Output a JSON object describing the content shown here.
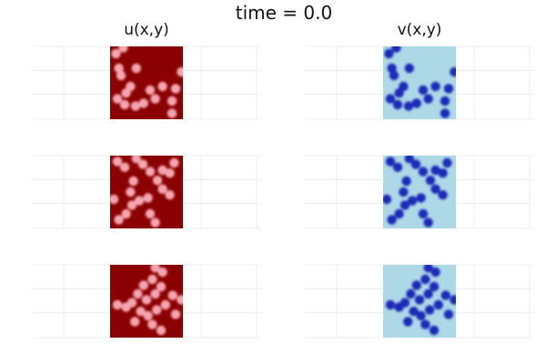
{
  "chart_data": {
    "type": "heatmap",
    "title": "time = 0.0",
    "columns": [
      "u(x,y)",
      "v(x,y)"
    ],
    "grid": true,
    "rows": 3,
    "colors": {
      "u_background": "#8b0000",
      "u_spot": "#f4a6b0",
      "v_background": "#add8e6",
      "v_spot": "#1a2ab8",
      "grid": "#ececec"
    },
    "panels": [
      {
        "column": "u(x,y)",
        "row": 1,
        "spots": [
          [
            0.08,
            0.1
          ],
          [
            0.18,
            0.02
          ],
          [
            0.12,
            0.3
          ],
          [
            0.15,
            0.4
          ],
          [
            0.28,
            0.55
          ],
          [
            0.22,
            0.64
          ],
          [
            0.1,
            0.72
          ],
          [
            0.2,
            0.8
          ],
          [
            0.35,
            0.82
          ],
          [
            0.46,
            0.78
          ],
          [
            0.36,
            0.3
          ],
          [
            0.55,
            0.6
          ],
          [
            0.62,
            0.72
          ],
          [
            0.72,
            0.55
          ],
          [
            0.9,
            0.58
          ],
          [
            0.85,
            0.75
          ],
          [
            0.85,
            0.92
          ],
          [
            0.98,
            0.35
          ]
        ]
      },
      {
        "column": "u(x,y)",
        "row": 2,
        "spots": [
          [
            0.1,
            0.08
          ],
          [
            0.2,
            0.16
          ],
          [
            0.36,
            0.04
          ],
          [
            0.45,
            0.12
          ],
          [
            0.55,
            0.22
          ],
          [
            0.72,
            0.2
          ],
          [
            0.82,
            0.24
          ],
          [
            0.88,
            0.1
          ],
          [
            0.65,
            0.34
          ],
          [
            0.72,
            0.46
          ],
          [
            0.82,
            0.54
          ],
          [
            0.32,
            0.35
          ],
          [
            0.28,
            0.5
          ],
          [
            0.4,
            0.62
          ],
          [
            0.52,
            0.58
          ],
          [
            0.3,
            0.68
          ],
          [
            0.22,
            0.8
          ],
          [
            0.12,
            0.88
          ],
          [
            0.55,
            0.8
          ],
          [
            0.62,
            0.92
          ],
          [
            0.05,
            0.6
          ]
        ]
      },
      {
        "column": "u(x,y)",
        "row": 3,
        "spots": [
          [
            0.62,
            0.04
          ],
          [
            0.72,
            0.1
          ],
          [
            0.58,
            0.2
          ],
          [
            0.46,
            0.28
          ],
          [
            0.38,
            0.4
          ],
          [
            0.3,
            0.52
          ],
          [
            0.22,
            0.58
          ],
          [
            0.1,
            0.55
          ],
          [
            0.5,
            0.48
          ],
          [
            0.62,
            0.4
          ],
          [
            0.7,
            0.3
          ],
          [
            0.42,
            0.64
          ],
          [
            0.34,
            0.78
          ],
          [
            0.52,
            0.7
          ],
          [
            0.64,
            0.62
          ],
          [
            0.76,
            0.55
          ],
          [
            0.86,
            0.42
          ],
          [
            0.9,
            0.68
          ],
          [
            0.58,
            0.82
          ],
          [
            0.7,
            0.9
          ],
          [
            0.98,
            0.48
          ]
        ]
      },
      {
        "column": "v(x,y)",
        "row": 1,
        "spots": [
          [
            0.08,
            0.1
          ],
          [
            0.18,
            0.02
          ],
          [
            0.12,
            0.3
          ],
          [
            0.15,
            0.4
          ],
          [
            0.28,
            0.55
          ],
          [
            0.22,
            0.64
          ],
          [
            0.1,
            0.72
          ],
          [
            0.2,
            0.8
          ],
          [
            0.35,
            0.82
          ],
          [
            0.46,
            0.78
          ],
          [
            0.36,
            0.3
          ],
          [
            0.55,
            0.6
          ],
          [
            0.62,
            0.72
          ],
          [
            0.72,
            0.55
          ],
          [
            0.9,
            0.58
          ],
          [
            0.85,
            0.75
          ],
          [
            0.85,
            0.92
          ],
          [
            0.98,
            0.35
          ]
        ]
      },
      {
        "column": "v(x,y)",
        "row": 2,
        "spots": [
          [
            0.1,
            0.08
          ],
          [
            0.2,
            0.16
          ],
          [
            0.36,
            0.04
          ],
          [
            0.45,
            0.12
          ],
          [
            0.55,
            0.22
          ],
          [
            0.72,
            0.2
          ],
          [
            0.82,
            0.24
          ],
          [
            0.88,
            0.1
          ],
          [
            0.65,
            0.34
          ],
          [
            0.72,
            0.46
          ],
          [
            0.82,
            0.54
          ],
          [
            0.32,
            0.35
          ],
          [
            0.28,
            0.5
          ],
          [
            0.4,
            0.62
          ],
          [
            0.52,
            0.58
          ],
          [
            0.3,
            0.68
          ],
          [
            0.22,
            0.8
          ],
          [
            0.12,
            0.88
          ],
          [
            0.55,
            0.8
          ],
          [
            0.62,
            0.92
          ],
          [
            0.05,
            0.6
          ]
        ]
      },
      {
        "column": "v(x,y)",
        "row": 3,
        "spots": [
          [
            0.62,
            0.04
          ],
          [
            0.72,
            0.1
          ],
          [
            0.58,
            0.2
          ],
          [
            0.46,
            0.28
          ],
          [
            0.38,
            0.4
          ],
          [
            0.3,
            0.52
          ],
          [
            0.22,
            0.58
          ],
          [
            0.1,
            0.55
          ],
          [
            0.5,
            0.48
          ],
          [
            0.62,
            0.4
          ],
          [
            0.7,
            0.3
          ],
          [
            0.42,
            0.64
          ],
          [
            0.34,
            0.78
          ],
          [
            0.52,
            0.7
          ],
          [
            0.64,
            0.62
          ],
          [
            0.76,
            0.55
          ],
          [
            0.86,
            0.42
          ],
          [
            0.9,
            0.68
          ],
          [
            0.58,
            0.82
          ],
          [
            0.7,
            0.9
          ],
          [
            0.98,
            0.48
          ]
        ]
      }
    ]
  }
}
